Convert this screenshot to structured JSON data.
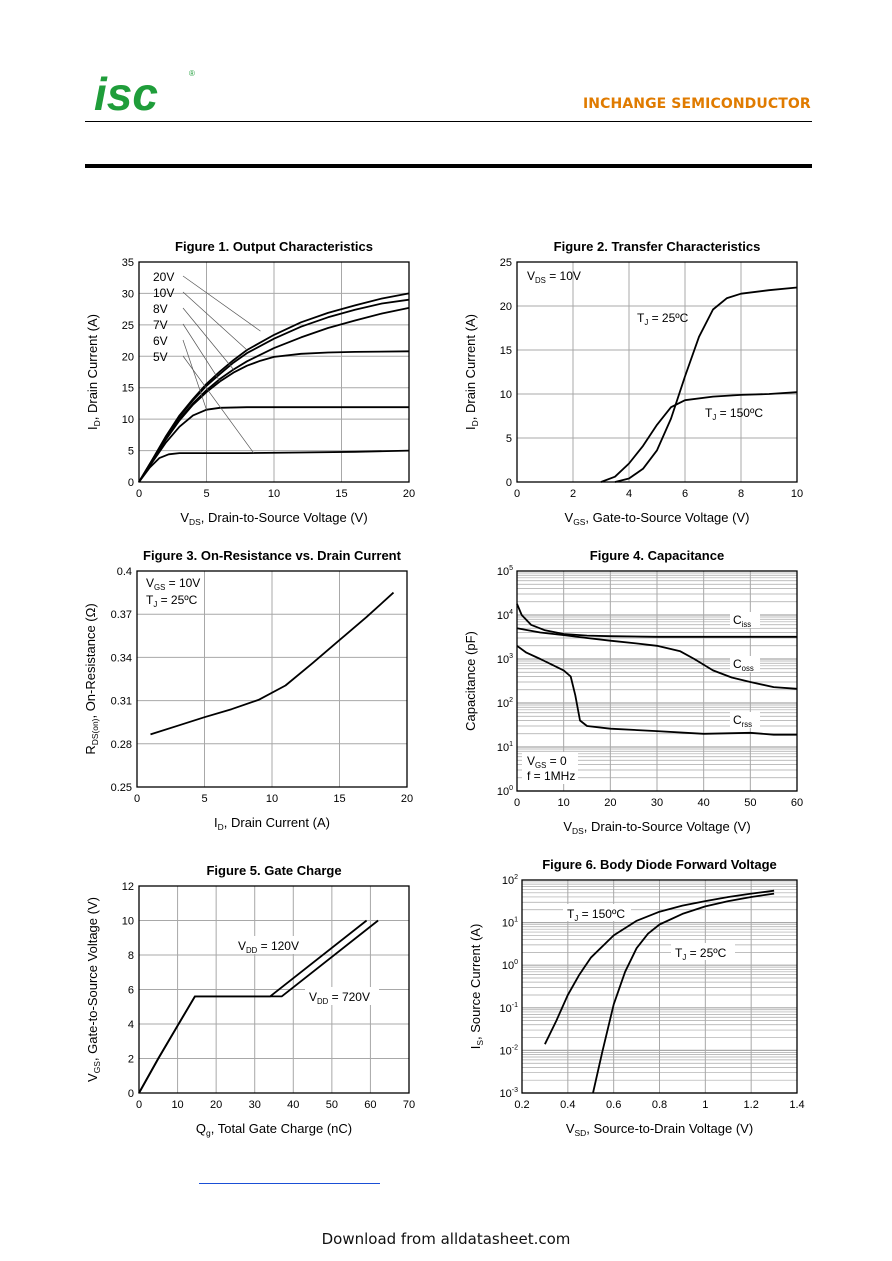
{
  "header": {
    "company": "INCHANGE SEMICONDUCTOR",
    "logo_text": "isc",
    "logo_mark": "®"
  },
  "footer": {
    "text": "Download from alldatasheet.com"
  },
  "colors": {
    "logo_green": "#1f9d3a",
    "company_orange": "#e07b00",
    "link_blue": "#1a4fd6",
    "grid": "#a8a8a8",
    "curve": "#000000"
  },
  "chart_data": [
    {
      "id": "fig1",
      "type": "line",
      "title": "Figure 1. Output Characteristics",
      "xlabel": {
        "main": "V",
        "sub": "DS",
        "rest": ", Drain-to-Source Voltage (V)"
      },
      "ylabel": {
        "main": "I",
        "sub": "D",
        "rest": ", Drain Current (A)"
      },
      "xlim": [
        0,
        20
      ],
      "ylim": [
        0,
        35
      ],
      "xticks": [
        0,
        5,
        10,
        15,
        20
      ],
      "yticks": [
        0,
        5,
        10,
        15,
        20,
        25,
        30,
        35
      ],
      "grid": true,
      "legend_labels": [
        "20V",
        "10V",
        "8V",
        "7V",
        "6V",
        "5V"
      ],
      "series": [
        {
          "name": "20V",
          "points": [
            [
              0,
              0
            ],
            [
              1,
              3.6
            ],
            [
              2,
              7.3
            ],
            [
              3,
              10.6
            ],
            [
              4,
              13.2
            ],
            [
              5,
              15.6
            ],
            [
              6,
              17.6
            ],
            [
              7,
              19.4
            ],
            [
              8,
              21
            ],
            [
              10,
              23.4
            ],
            [
              12,
              25.4
            ],
            [
              14,
              26.9
            ],
            [
              16,
              28.1
            ],
            [
              18,
              29.2
            ],
            [
              20,
              30
            ]
          ]
        },
        {
          "name": "10V",
          "points": [
            [
              0,
              0
            ],
            [
              1,
              3.6
            ],
            [
              2,
              7.2
            ],
            [
              3,
              10.4
            ],
            [
              4,
              13
            ],
            [
              5,
              15.3
            ],
            [
              6,
              17.2
            ],
            [
              7,
              19
            ],
            [
              8,
              20.5
            ],
            [
              10,
              22.8
            ],
            [
              12,
              24.7
            ],
            [
              14,
              26.2
            ],
            [
              16,
              27.4
            ],
            [
              18,
              28.4
            ],
            [
              20,
              29
            ]
          ]
        },
        {
          "name": "8V",
          "points": [
            [
              0,
              0
            ],
            [
              1,
              3.5
            ],
            [
              2,
              7
            ],
            [
              3,
              10
            ],
            [
              4,
              12.5
            ],
            [
              5,
              14.6
            ],
            [
              6,
              16.4
            ],
            [
              7,
              17.9
            ],
            [
              8,
              19.2
            ],
            [
              10,
              21.3
            ],
            [
              12,
              23
            ],
            [
              14,
              24.5
            ],
            [
              16,
              25.7
            ],
            [
              18,
              26.8
            ],
            [
              20,
              27.7
            ]
          ]
        },
        {
          "name": "7V",
          "points": [
            [
              0,
              0
            ],
            [
              1,
              3.5
            ],
            [
              2,
              6.8
            ],
            [
              3,
              9.8
            ],
            [
              4,
              12.3
            ],
            [
              5,
              14.3
            ],
            [
              6,
              16
            ],
            [
              7,
              17.4
            ],
            [
              8,
              18.5
            ],
            [
              9,
              19.3
            ],
            [
              10,
              19.9
            ],
            [
              12,
              20.4
            ],
            [
              14,
              20.6
            ],
            [
              16,
              20.7
            ],
            [
              20,
              20.8
            ]
          ]
        },
        {
          "name": "6V",
          "points": [
            [
              0,
              0
            ],
            [
              1,
              3.2
            ],
            [
              2,
              6.3
            ],
            [
              3,
              8.8
            ],
            [
              4,
              10.6
            ],
            [
              5,
              11.5
            ],
            [
              6,
              11.8
            ],
            [
              8,
              11.9
            ],
            [
              12,
              11.9
            ],
            [
              16,
              11.9
            ],
            [
              20,
              11.9
            ]
          ]
        },
        {
          "name": "5V",
          "points": [
            [
              0,
              0
            ],
            [
              0.8,
              2.3
            ],
            [
              1.5,
              3.8
            ],
            [
              2.2,
              4.4
            ],
            [
              3,
              4.6
            ],
            [
              5,
              4.6
            ],
            [
              8,
              4.6
            ],
            [
              12,
              4.7
            ],
            [
              16,
              4.8
            ],
            [
              20,
              5
            ]
          ]
        }
      ]
    },
    {
      "id": "fig2",
      "type": "line",
      "title": "Figure 2. Transfer Characteristics",
      "xlabel": {
        "main": "V",
        "sub": "GS",
        "rest": ", Gate-to-Source Voltage (V)"
      },
      "ylabel": {
        "main": "I",
        "sub": "D",
        "rest": ", Drain Current (A)"
      },
      "xlim": [
        0,
        10
      ],
      "ylim": [
        0,
        25
      ],
      "xticks": [
        0,
        2,
        4,
        6,
        8,
        10
      ],
      "yticks": [
        0,
        5,
        10,
        15,
        20,
        25
      ],
      "grid": true,
      "annotation": {
        "main": "V",
        "sub": "DS",
        "rest": " = 10V"
      },
      "series": [
        {
          "name": "T_J = 25ºC",
          "label": {
            "main": "T",
            "sub": "J",
            "rest": " = 25ºC"
          },
          "points": [
            [
              3.5,
              0
            ],
            [
              4,
              0.4
            ],
            [
              4.5,
              1.5
            ],
            [
              5,
              3.6
            ],
            [
              5.5,
              7.2
            ],
            [
              6,
              12
            ],
            [
              6.5,
              16.5
            ],
            [
              7,
              19.6
            ],
            [
              7.5,
              20.9
            ],
            [
              8,
              21.4
            ],
            [
              9,
              21.8
            ],
            [
              10,
              22.1
            ]
          ]
        },
        {
          "name": "T_J = 150ºC",
          "label": {
            "main": "T",
            "sub": "J",
            "rest": " = 150ºC"
          },
          "points": [
            [
              3,
              0
            ],
            [
              3.5,
              0.6
            ],
            [
              4,
              2.1
            ],
            [
              4.5,
              4.1
            ],
            [
              5,
              6.5
            ],
            [
              5.5,
              8.5
            ],
            [
              6,
              9.3
            ],
            [
              7,
              9.7
            ],
            [
              8,
              9.9
            ],
            [
              9,
              10
            ],
            [
              10,
              10.2
            ]
          ]
        }
      ]
    },
    {
      "id": "fig3",
      "type": "line",
      "title": "Figure 3. On-Resistance vs. Drain Current",
      "xlabel": {
        "main": "I",
        "sub": "D",
        "rest": ", Drain Current (A)"
      },
      "ylabel": {
        "main": "R",
        "sub": "DS(on)",
        "rest": ", On-Resistance (Ω)"
      },
      "xlim": [
        0,
        20
      ],
      "ylim": [
        0.25,
        0.4
      ],
      "xticks": [
        0,
        5,
        10,
        15,
        20
      ],
      "yticks": [
        0.25,
        0.28,
        0.31,
        0.34,
        0.37,
        0.4
      ],
      "grid": true,
      "annotation": [
        {
          "main": "V",
          "sub": "GS",
          "rest": " = 10V"
        },
        {
          "main": "T",
          "sub": "J",
          "rest": " = 25ºC"
        }
      ],
      "series": [
        {
          "name": "R_DS(on)",
          "points": [
            [
              1,
              0.2865
            ],
            [
              3,
              0.2925
            ],
            [
              5,
              0.2985
            ],
            [
              7,
              0.304
            ],
            [
              9,
              0.3105
            ],
            [
              11,
              0.3205
            ],
            [
              13,
              0.336
            ],
            [
              15,
              0.352
            ],
            [
              17,
              0.368
            ],
            [
              19,
              0.385
            ]
          ]
        }
      ]
    },
    {
      "id": "fig4",
      "type": "line",
      "title": "Figure 4. Capacitance",
      "xlabel": {
        "main": "V",
        "sub": "DS",
        "rest": ", Drain-to-Source Voltage (V)"
      },
      "ylabel": {
        "main": "Capacitance (pF)",
        "sub": "",
        "rest": ""
      },
      "xlim": [
        0,
        60
      ],
      "ylim_exp": [
        0,
        5
      ],
      "yscale": "log",
      "xticks": [
        0,
        10,
        20,
        30,
        40,
        50,
        60
      ],
      "grid": true,
      "annotation": [
        {
          "main": "V",
          "sub": "GS",
          "rest": " = 0"
        },
        {
          "main": "f = 1MHz",
          "sub": "",
          "rest": ""
        }
      ],
      "series": [
        {
          "name": "Ciss",
          "label": {
            "main": "C",
            "sub": "iss",
            "rest": ""
          },
          "points": [
            [
              0,
              18000
            ],
            [
              1,
              10000
            ],
            [
              3,
              6000
            ],
            [
              6,
              4500
            ],
            [
              10,
              3700
            ],
            [
              15,
              3400
            ],
            [
              20,
              3300
            ],
            [
              30,
              3200
            ],
            [
              40,
              3200
            ],
            [
              50,
              3200
            ],
            [
              60,
              3200
            ]
          ]
        },
        {
          "name": "Coss",
          "label": {
            "main": "C",
            "sub": "oss",
            "rest": ""
          },
          "points": [
            [
              0,
              5000
            ],
            [
              5,
              4000
            ],
            [
              10,
              3500
            ],
            [
              15,
              3000
            ],
            [
              20,
              2600
            ],
            [
              25,
              2300
            ],
            [
              30,
              2000
            ],
            [
              35,
              1500
            ],
            [
              38,
              1000
            ],
            [
              42,
              550
            ],
            [
              46,
              380
            ],
            [
              50,
              300
            ],
            [
              55,
              230
            ],
            [
              60,
              210
            ]
          ]
        },
        {
          "name": "Crss",
          "label": {
            "main": "C",
            "sub": "rss",
            "rest": ""
          },
          "points": [
            [
              0,
              2000
            ],
            [
              2,
              1400
            ],
            [
              5,
              1000
            ],
            [
              8,
              700
            ],
            [
              10,
              550
            ],
            [
              11.5,
              400
            ],
            [
              12.5,
              150
            ],
            [
              13.5,
              40
            ],
            [
              15,
              30
            ],
            [
              20,
              26
            ],
            [
              30,
              23
            ],
            [
              40,
              20
            ],
            [
              50,
              21
            ],
            [
              55,
              19
            ],
            [
              60,
              19
            ]
          ]
        }
      ]
    },
    {
      "id": "fig5",
      "type": "line",
      "title": "Figure 5. Gate Charge",
      "xlabel": {
        "main": "Q",
        "sub": "g",
        "rest": ", Total Gate Charge (nC)"
      },
      "ylabel": {
        "main": "V",
        "sub": "GS",
        "rest": ", Gate-to-Source Voltage (V)"
      },
      "xlim": [
        0,
        70
      ],
      "ylim": [
        0,
        12
      ],
      "xticks": [
        0,
        10,
        20,
        30,
        40,
        50,
        60,
        70
      ],
      "yticks": [
        0,
        2,
        4,
        6,
        8,
        10,
        12
      ],
      "grid": true,
      "series": [
        {
          "name": "V_DD = 120V",
          "label": {
            "main": "V",
            "sub": "DD",
            "rest": " = 120V"
          },
          "points": [
            [
              0,
              0
            ],
            [
              5,
              2
            ],
            [
              10,
              3.9
            ],
            [
              14.5,
              5.6
            ],
            [
              34,
              5.6
            ],
            [
              59,
              10
            ]
          ]
        },
        {
          "name": "V_DD = 720V",
          "label": {
            "main": "V",
            "sub": "DD",
            "rest": " = 720V"
          },
          "points": [
            [
              0,
              0
            ],
            [
              5,
              2
            ],
            [
              10,
              3.9
            ],
            [
              14.5,
              5.6
            ],
            [
              37,
              5.6
            ],
            [
              62,
              10
            ]
          ]
        }
      ]
    },
    {
      "id": "fig6",
      "type": "line",
      "title": "Figure 6. Body Diode Forward Voltage",
      "xlabel": {
        "main": "V",
        "sub": "SD",
        "rest": ", Source-to-Drain Voltage (V)"
      },
      "ylabel": {
        "main": "I",
        "sub": "S",
        "rest": ", Source Current (A)"
      },
      "xlim": [
        0.2,
        1.4
      ],
      "ylim_exp": [
        -3,
        2
      ],
      "yscale": "log",
      "xticks": [
        0.2,
        0.4,
        0.6,
        0.8,
        1,
        1.2,
        1.4
      ],
      "grid": true,
      "series": [
        {
          "name": "T_J = 150ºC",
          "label": {
            "main": "T",
            "sub": "J",
            "rest": " = 150ºC"
          },
          "points": [
            [
              0.3,
              0.014
            ],
            [
              0.35,
              0.05
            ],
            [
              0.4,
              0.2
            ],
            [
              0.45,
              0.6
            ],
            [
              0.5,
              1.5
            ],
            [
              0.6,
              5
            ],
            [
              0.7,
              11
            ],
            [
              0.8,
              18
            ],
            [
              0.9,
              25
            ],
            [
              1,
              32
            ],
            [
              1.1,
              40
            ],
            [
              1.2,
              48
            ],
            [
              1.3,
              56
            ]
          ]
        },
        {
          "name": "T_J = 25ºC",
          "label": {
            "main": "T",
            "sub": "J",
            "rest": " = 25ºC"
          },
          "points": [
            [
              0.51,
              0.001
            ],
            [
              0.55,
              0.009
            ],
            [
              0.6,
              0.12
            ],
            [
              0.65,
              0.7
            ],
            [
              0.7,
              2.5
            ],
            [
              0.75,
              5.5
            ],
            [
              0.8,
              9
            ],
            [
              0.9,
              16
            ],
            [
              1,
              24
            ],
            [
              1.1,
              32
            ],
            [
              1.2,
              40
            ],
            [
              1.3,
              48
            ]
          ]
        }
      ]
    }
  ]
}
